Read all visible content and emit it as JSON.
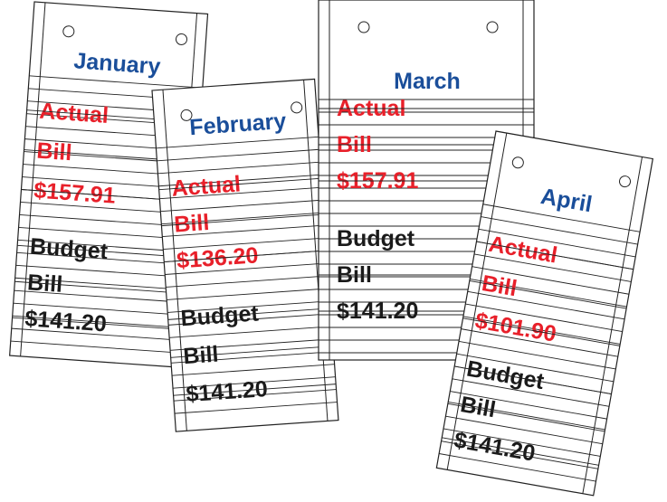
{
  "notes": [
    {
      "month": "January",
      "actual": [
        "Actual",
        "Bill",
        "$157.91"
      ],
      "budget": [
        "Budget",
        "Bill",
        "$141.20"
      ]
    },
    {
      "month": "February",
      "actual": [
        "Actual",
        "Bill",
        "$136.20"
      ],
      "budget": [
        "Budget",
        "Bill",
        "$141.20"
      ]
    },
    {
      "month": "March",
      "actual": [
        "Actual",
        "Bill",
        "$157.91"
      ],
      "budget": [
        "Budget",
        "Bill",
        "$141.20"
      ]
    },
    {
      "month": "April",
      "actual": [
        "Actual",
        "Bill",
        "$101.90"
      ],
      "budget": [
        "Budget",
        "Bill",
        "$141.20"
      ]
    }
  ]
}
